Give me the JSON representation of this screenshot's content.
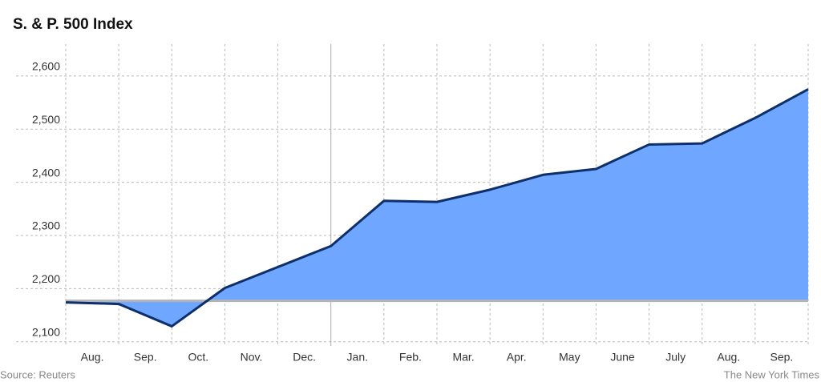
{
  "chart_data": {
    "type": "area",
    "title": "S. & P. 500 Index",
    "categories": [
      "Aug.",
      "Sep.",
      "Oct.",
      "Nov.",
      "Dec.",
      "Jan.",
      "Feb.",
      "Mar.",
      "Apr.",
      "May",
      "June",
      "July",
      "Aug.",
      "Sep."
    ],
    "x": [
      0,
      1,
      2,
      3,
      5,
      6,
      7,
      8,
      9,
      10,
      11,
      12,
      13,
      14
    ],
    "values": [
      2174,
      2171,
      2129,
      2201,
      2280,
      2365,
      2363,
      2386,
      2414,
      2425,
      2471,
      2473,
      2521,
      2575
    ],
    "baseline": 2177,
    "xlim": [
      0,
      14
    ],
    "xticks": [
      0,
      1,
      2,
      3,
      4,
      5,
      6,
      7,
      8,
      9,
      10,
      11,
      12,
      13,
      14
    ],
    "year_boundary": 5,
    "ylim": [
      2092,
      2660
    ],
    "yticks": [
      {
        "value": 2100,
        "label": "2,100"
      },
      {
        "value": 2200,
        "label": "2,200"
      },
      {
        "value": 2300,
        "label": "2,300"
      },
      {
        "value": 2400,
        "label": "2,400"
      },
      {
        "value": 2500,
        "label": "2,500"
      },
      {
        "value": 2600,
        "label": "2,600"
      }
    ],
    "grid": true,
    "line_color": "#0d2f6b",
    "fill_color": "#6fa6ff",
    "baseline_color": "#b3b3b3",
    "source": "Source: Reuters",
    "credit": "The New York Times"
  }
}
